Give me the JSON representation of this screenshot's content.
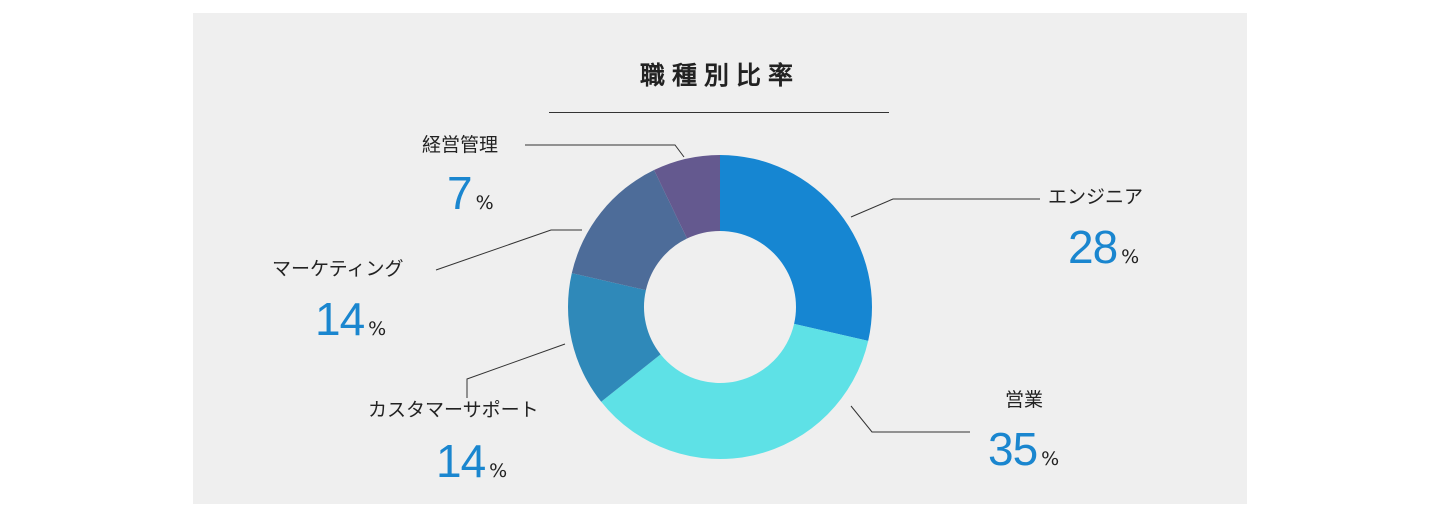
{
  "chart_data": {
    "type": "pie",
    "title": "職種別比率",
    "donut": true,
    "unit": "%",
    "categories": [
      "エンジニア",
      "営業",
      "カスタマーサポート",
      "マーケティング",
      "経営管理"
    ],
    "values": [
      28,
      35,
      14,
      14,
      7
    ],
    "colors": [
      "#1686d2",
      "#5ee1e6",
      "#2f89b9",
      "#4d6c99",
      "#64598f"
    ],
    "label_color": "#1a86cf",
    "leader_color": "#333333"
  }
}
